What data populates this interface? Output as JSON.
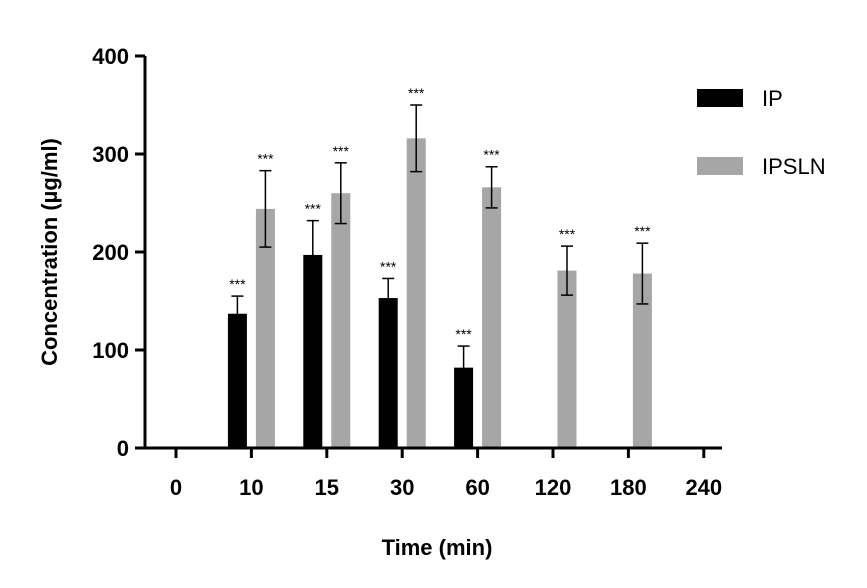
{
  "chart_data": {
    "type": "bar",
    "title": "",
    "xlabel": "Time (min)",
    "ylabel": "Concentration (µg/ml)",
    "ylim": [
      0,
      400
    ],
    "yticks": [
      0,
      100,
      200,
      300,
      400
    ],
    "ytick_labels": [
      "0",
      "100",
      "200",
      "300",
      "400"
    ],
    "categories": [
      "0",
      "10",
      "15",
      "30",
      "60",
      "120",
      "180",
      "240"
    ],
    "legend_position": "top-right",
    "grid": false,
    "series": [
      {
        "name": "IP",
        "color": "#000000",
        "values": [
          0,
          137,
          197,
          153,
          82,
          0,
          0,
          0
        ],
        "errors": [
          0,
          18,
          35,
          20,
          22,
          0,
          0,
          0
        ],
        "annotations": [
          "",
          "***",
          "***",
          "***",
          "***",
          "",
          "",
          ""
        ]
      },
      {
        "name": "IPSLN",
        "color": "#a6a6a6",
        "values": [
          0,
          244,
          260,
          316,
          266,
          181,
          178,
          0
        ],
        "errors": [
          0,
          39,
          31,
          34,
          21,
          25,
          31,
          0
        ],
        "annotations": [
          "",
          "***",
          "***",
          "***",
          "***",
          "***",
          "***",
          ""
        ]
      }
    ]
  }
}
